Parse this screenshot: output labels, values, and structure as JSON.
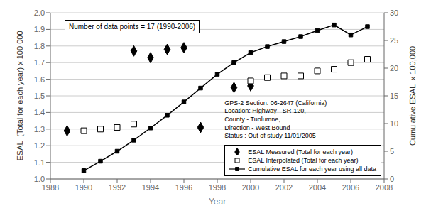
{
  "chart_data": {
    "type": "line",
    "xlabel": "Year",
    "ylabel": "ESAL  (Total for each year) x 100,000",
    "y2label": "Cumulative ESAL  x 100,000",
    "annotations": [
      "Number of data points = 17 (1990-2006)",
      "GPS-2 Section: 06-2647 (California)\nLocation: Highway - SR-120,\nCounty - Tuolumne,\nDirection - West Bound\nStatus : Out of study 11/01/2005"
    ],
    "xlim": [
      1988,
      2008
    ],
    "xticks": [
      1988,
      1990,
      1992,
      1994,
      1996,
      1998,
      2000,
      2002,
      2004,
      2006,
      2008
    ],
    "ylim": [
      1.0,
      2.0
    ],
    "yticks": [
      {
        "value": 1.0,
        "label": "1.0"
      },
      1.1,
      1.2,
      1.3,
      1.4,
      1.5,
      1.6,
      1.7,
      1.8,
      1.9,
      {
        "value": 2.0,
        "label": "2.0"
      }
    ],
    "y2lim": [
      0,
      30
    ],
    "y2ticks": [
      0,
      5,
      10,
      15,
      20,
      25,
      30
    ],
    "grid": true,
    "legend": "lower right",
    "series": [
      {
        "name": "ESAL Measured (Total for each year)",
        "type": "scatter",
        "marker": "diamond",
        "color": "#000000",
        "x": [
          1989,
          1993,
          1994,
          1995,
          1996,
          1997,
          1999,
          2000
        ],
        "values": [
          1.29,
          1.77,
          1.73,
          1.78,
          1.79,
          1.31,
          1.55,
          1.56
        ]
      },
      {
        "name": "ESAL Interpolated (Total for each year)",
        "type": "scatter",
        "marker": "open-square",
        "color": "#000000",
        "x": [
          1990,
          1991,
          1992,
          1993,
          2000,
          2001,
          2002,
          2003,
          2004,
          2005,
          2006,
          2007
        ],
        "values": [
          1.29,
          1.3,
          1.31,
          1.33,
          1.59,
          1.61,
          1.62,
          1.62,
          1.65,
          1.66,
          1.7,
          1.72
        ]
      },
      {
        "name": "Cumulative ESAL for each year using all data",
        "type": "line",
        "marker": "square",
        "color": "#000000",
        "axis": "y2",
        "x": [
          1990,
          1991,
          1992,
          1993,
          1994,
          1995,
          1996,
          1997,
          1998,
          1999,
          2000,
          2001,
          2002,
          2003,
          2004,
          2005,
          2006,
          2007
        ],
        "values": [
          1.5,
          3.2,
          5.0,
          7.0,
          9.2,
          11.5,
          13.9,
          16.4,
          18.9,
          21.0,
          22.8,
          23.9,
          24.8,
          25.7,
          26.8,
          27.8,
          26.0,
          27.5
        ]
      }
    ]
  }
}
